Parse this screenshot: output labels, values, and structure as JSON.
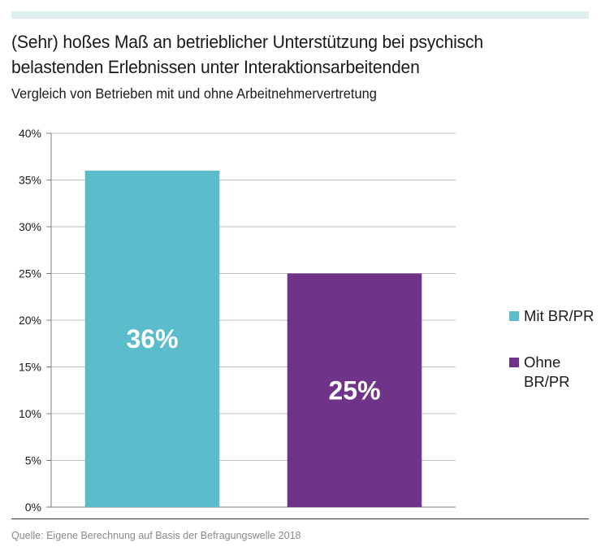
{
  "header": {
    "title": "(Sehr) hoßes Maß an betrieblicher Unterstützung bei psychisch belastenden Erlebnissen unter Interaktionsarbeitenden",
    "subtitle": "Vergleich von Betrieben mit und ohne Arbeitnehmervertretung"
  },
  "footer": {
    "source": "Quelle: Eigene Berechnung auf Basis der Befragungswelle 2018"
  },
  "colors": {
    "top_bar": "#ddeff1",
    "mit": "#5bbccb",
    "ohne": "#70338a",
    "gridline": "#bfbfbf"
  },
  "legend": [
    {
      "label": "Mit BR/PR",
      "color": "#5bbccb"
    },
    {
      "label": "Ohne BR/PR",
      "color": "#70338a"
    }
  ],
  "chart_data": {
    "type": "bar",
    "title": "(Sehr) hoßes Maß an betrieblicher Unterstützung bei psychisch belastenden Erlebnissen unter Interaktionsarbeitenden",
    "subtitle": "Vergleich von Betrieben mit und ohne Arbeitnehmervertretung",
    "categories": [
      "Mit BR/PR",
      "Ohne BR/PR"
    ],
    "values": [
      36,
      25
    ],
    "data_labels": [
      "36%",
      "25%"
    ],
    "colors": [
      "#5bbccb",
      "#70338a"
    ],
    "ylim": [
      0,
      40
    ],
    "yticks": [
      0,
      5,
      10,
      15,
      20,
      25,
      30,
      35,
      40
    ],
    "ytick_labels": [
      "0%",
      "5%",
      "10%",
      "15%",
      "20%",
      "25%",
      "30%",
      "35%",
      "40%"
    ],
    "xlabel": "",
    "ylabel": "",
    "grid": true,
    "legend_position": "right"
  }
}
